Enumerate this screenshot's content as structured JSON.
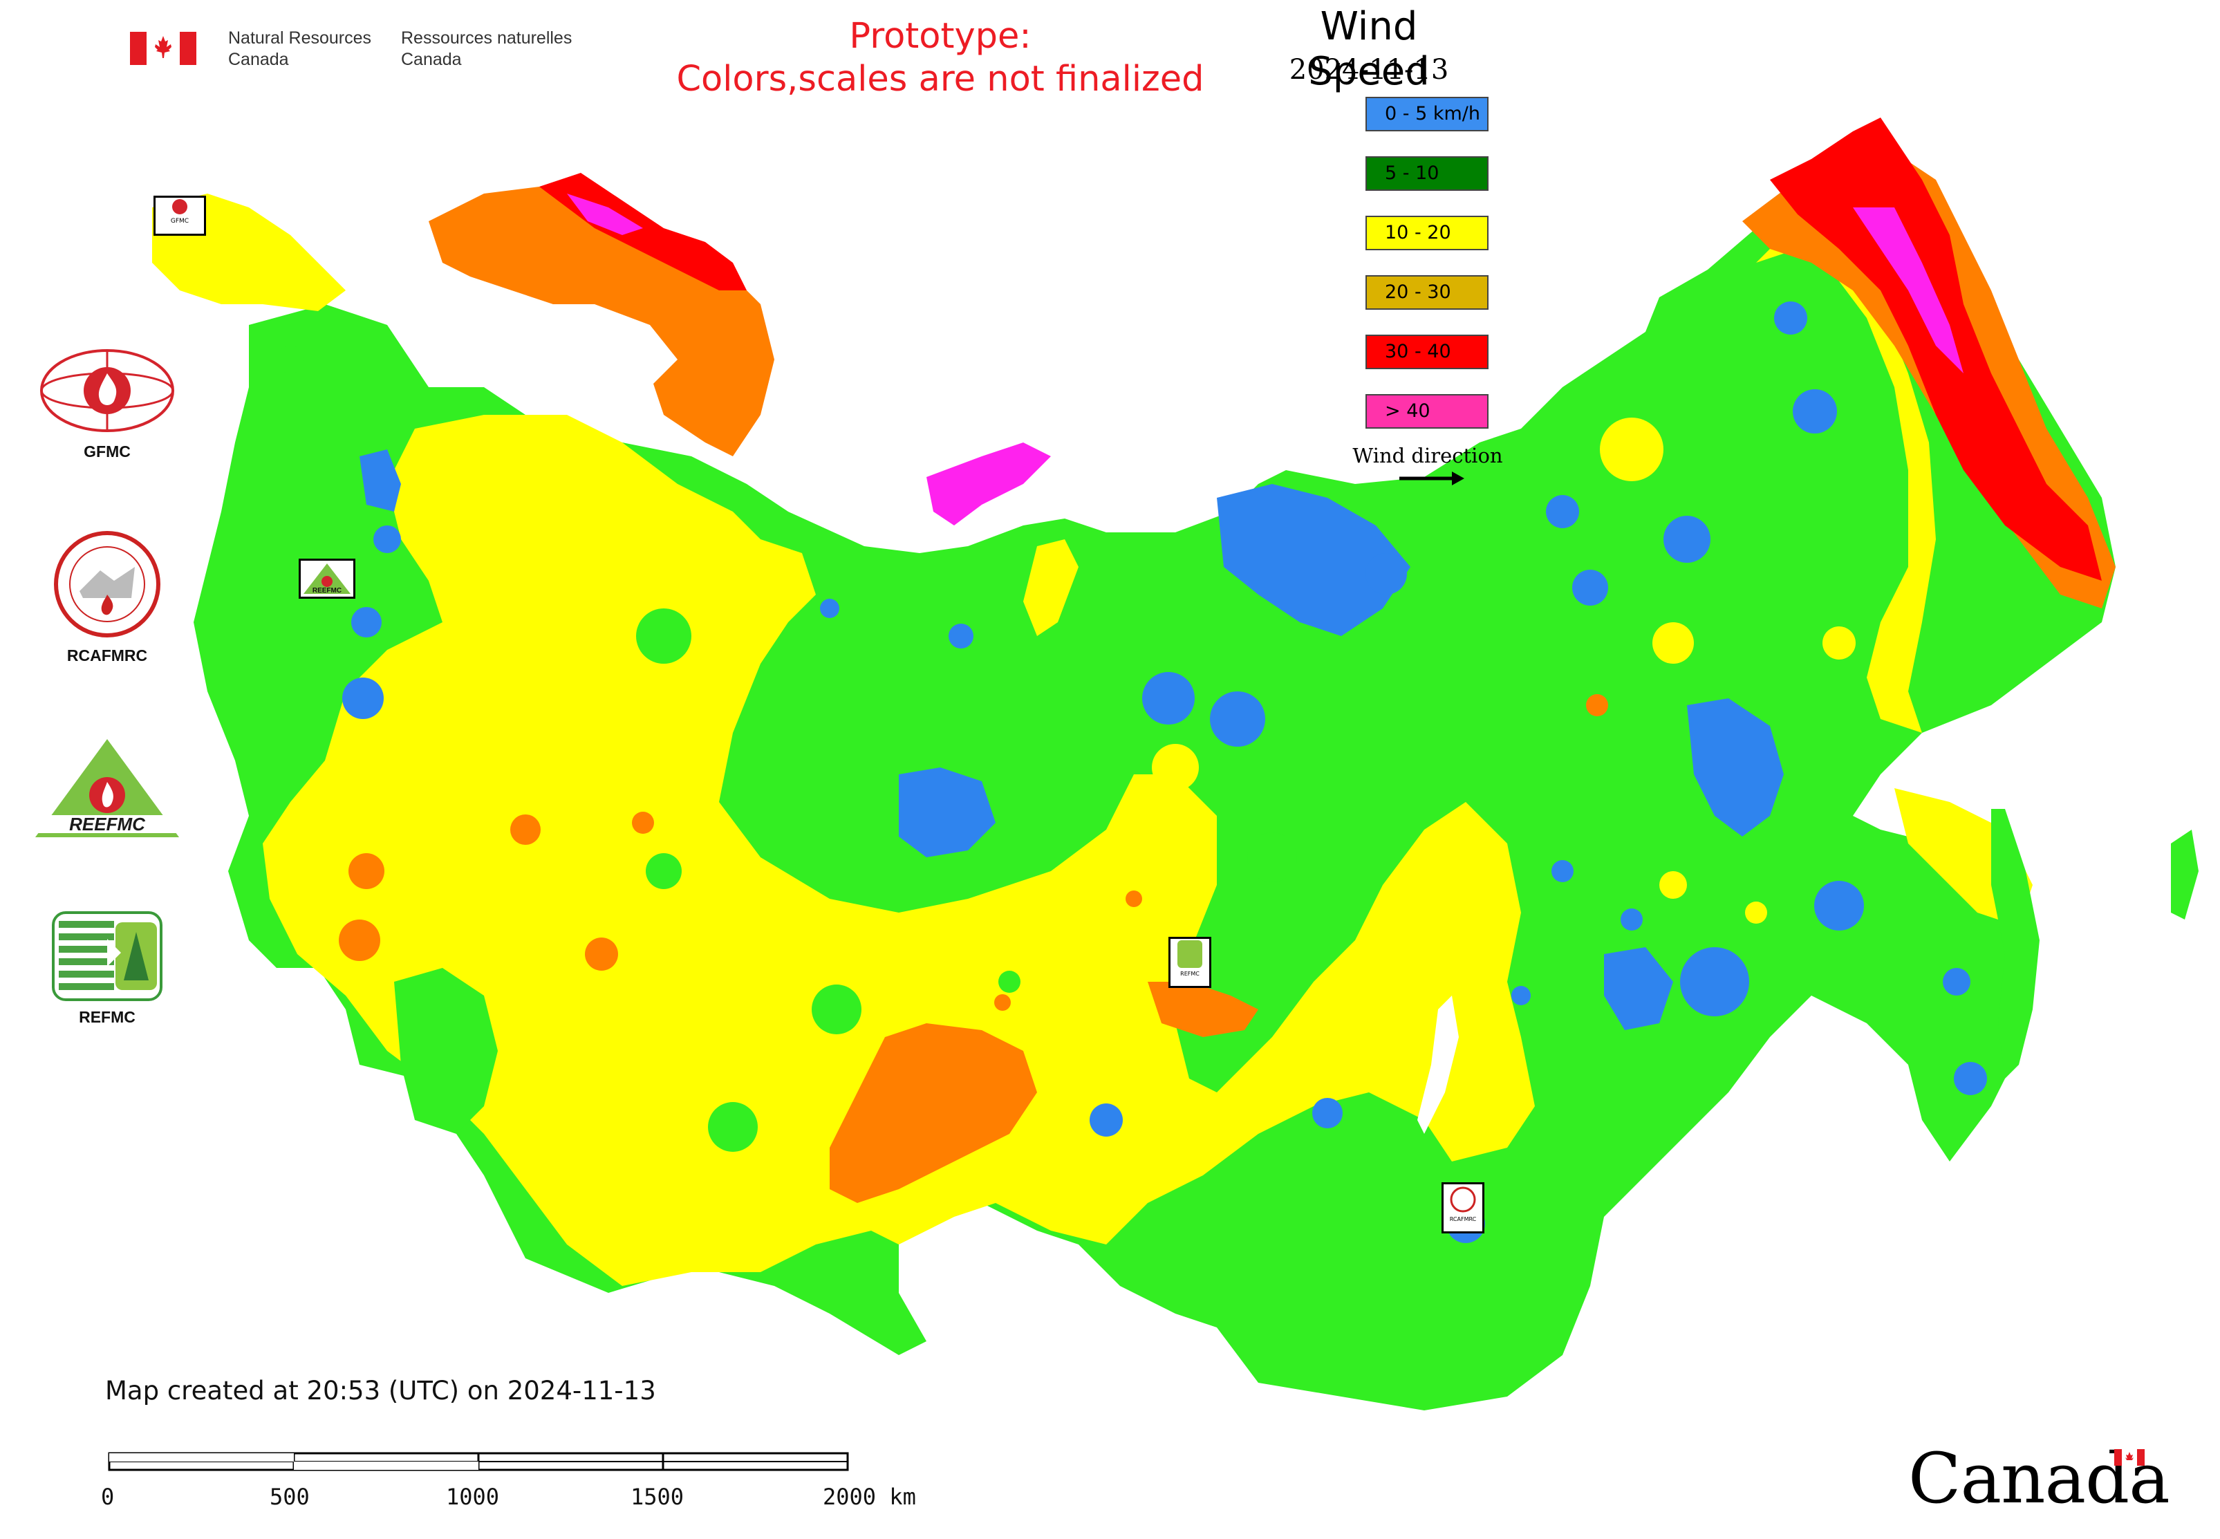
{
  "header": {
    "gov_en_line1": "Natural Resources",
    "gov_en_line2": "Canada",
    "gov_fr_line1": "Ressources naturelles",
    "gov_fr_line2": "Canada",
    "prototype_line1": "Prototype:",
    "prototype_line2": "Colors,scales are not finalized"
  },
  "legend": {
    "title": "Wind Speed",
    "date": "2024-11-13",
    "items": [
      {
        "label": "0 - 5 km/h",
        "color": "#3b8ef0"
      },
      {
        "label": "5 - 10",
        "color": "#008000"
      },
      {
        "label": "10 - 20",
        "color": "#ffff00"
      },
      {
        "label": "20 - 30",
        "color": "#dab200"
      },
      {
        "label": "30 - 40",
        "color": "#ff0000"
      },
      {
        "label": "> 40",
        "color": "#ff33aa"
      }
    ],
    "wind_direction_label": "Wind direction"
  },
  "zone_colors": {
    "calm": "#2f84ee",
    "light": "#33ee22",
    "moderate": "#ffff00",
    "fresh": "#ff7f00",
    "strong": "#ff0000",
    "gale": "#ff22ee"
  },
  "logos": [
    {
      "caption": "GFMC",
      "icon": "gfmc-logo-icon"
    },
    {
      "caption": "RCAFMRC",
      "icon": "rcafmrc-logo-icon"
    },
    {
      "caption": "",
      "icon": "reefmc-logo-icon",
      "logo_text": "REEFMC"
    },
    {
      "caption": "REFMC",
      "icon": "refmc-logo-icon"
    }
  ],
  "map_labels": {
    "gfmc_marker": "GFMC",
    "reefmc_marker": "REEFMC",
    "refmc_marker": "REFMC",
    "rcafmrc_marker": "RCAFMRC"
  },
  "footer": {
    "created": "Map created at 20:53 (UTC) on 2024-11-13",
    "scale_ticks": [
      "0",
      "500",
      "1000",
      "1500",
      "2000 km"
    ],
    "wordmark": "Canada"
  }
}
